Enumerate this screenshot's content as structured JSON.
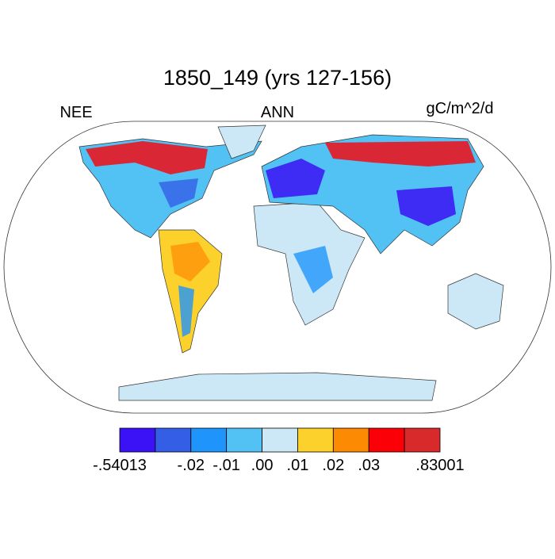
{
  "header": {
    "title": "1850_149 (yrs 127-156)",
    "left": "NEE",
    "center": "ANN",
    "right": "gC/m^2/d"
  },
  "colorbar": {
    "colors": [
      "#3b12f5",
      "#345ee6",
      "#1f95fb",
      "#52c1f4",
      "#cce8f6",
      "#fdd12c",
      "#fd8a03",
      "#fb0006",
      "#d82a2a"
    ],
    "labels": [
      "-.54013",
      null,
      "-.02",
      "-.01",
      ".00",
      ".01",
      ".02",
      ".03",
      null,
      ".83001"
    ]
  }
}
